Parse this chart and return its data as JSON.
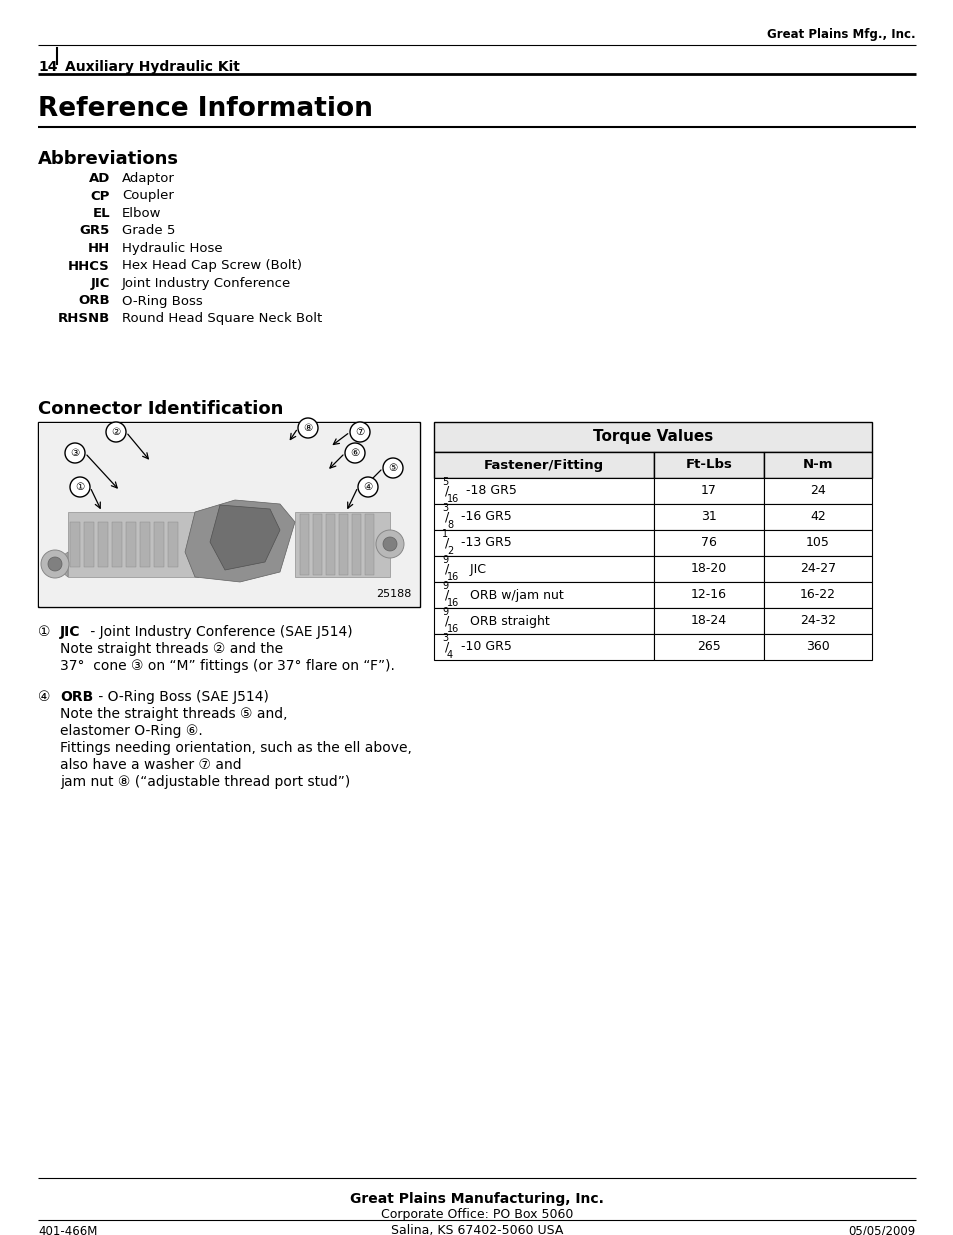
{
  "page_number": "14",
  "header_left": "Auxiliary Hydraulic Kit",
  "header_right": "Great Plains Mfg., Inc.",
  "main_title": "Reference Information",
  "section1_title": "Abbreviations",
  "abbreviations": [
    [
      "AD",
      "Adaptor"
    ],
    [
      "CP",
      "Coupler"
    ],
    [
      "EL",
      "Elbow"
    ],
    [
      "GR5",
      "Grade 5"
    ],
    [
      "HH",
      "Hydraulic Hose"
    ],
    [
      "HHCS",
      "Hex Head Cap Screw (Bolt)"
    ],
    [
      "JIC",
      "Joint Industry Conference"
    ],
    [
      "ORB",
      "O-Ring Boss"
    ],
    [
      "RHSNB",
      "Round Head Square Neck Bolt"
    ]
  ],
  "section2_title": "Connector Identification",
  "image_caption": "25188",
  "torque_title": "Torque Values",
  "torque_headers": [
    "Fastener/Fitting",
    "Ft-Lbs",
    "N-m"
  ],
  "torque_rows": [
    [
      "5/16-18 GR5",
      "17",
      "24"
    ],
    [
      "3/8-16 GR5",
      "31",
      "42"
    ],
    [
      "1/2-13 GR5",
      "76",
      "105"
    ],
    [
      "9/16 JIC",
      "18-20",
      "24-27"
    ],
    [
      "9/16 ORB w/jam nut",
      "12-16",
      "16-22"
    ],
    [
      "9/16 ORB straight",
      "18-24",
      "24-32"
    ],
    [
      "3/4-10 GR5",
      "265",
      "360"
    ]
  ],
  "torque_rows_fmt": [
    [
      "$^{5}/_{16}$-18 GR5",
      "17",
      "24"
    ],
    [
      "$^{3}/_{8}$-16 GR5",
      "31",
      "42"
    ],
    [
      "$^{1}/_{2}$-13 GR5",
      "76",
      "105"
    ],
    [
      "$^{9}/_{16}$ JIC",
      "18-20",
      "24-27"
    ],
    [
      "$^{9}/_{16}$ ORB w/jam nut",
      "12-16",
      "16-22"
    ],
    [
      "$^{9}/_{16}$ ORB straight",
      "18-24",
      "24-32"
    ],
    [
      "$^{3}/_{4}$-10 GR5",
      "265",
      "360"
    ]
  ],
  "note1_sym": "①",
  "note1_bold": "JIC",
  "note1_line1": " - Joint Industry Conference (SAE J514)",
  "note1_line2": "Note straight threads ② and the",
  "note1_line3": "37°  cone ③ on “M” fittings (or 37° flare on “F”).",
  "note2_sym": "④",
  "note2_bold": "ORB",
  "note2_line1": " - O-Ring Boss (SAE J514)",
  "note2_line2": "Note the straight threads ⑤ and,",
  "note2_line3": "elastomer O-Ring ⑥.",
  "note2_line4": "Fittings needing orientation, such as the ell above,",
  "note2_line5": "also have a washer ⑦ and",
  "note2_line6": "jam nut ⑧ (“adjustable thread port stud”)",
  "footer_company": "Great Plains Manufacturing, Inc.",
  "footer_address1": "Corporate Office: PO Box 5060",
  "footer_address2": "Salina, KS 67402-5060 USA",
  "footer_left": "401-466M",
  "footer_right": "05/05/2009",
  "bg_color": "#ffffff"
}
